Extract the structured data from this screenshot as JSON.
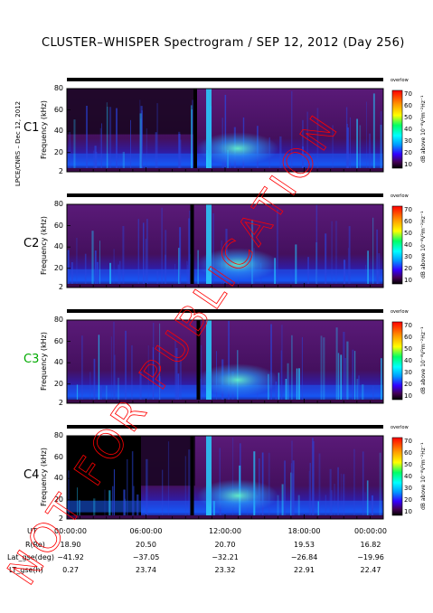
{
  "title": "CLUSTER–WHISPER Spectrogram / SEP 12, 2012 (Day 256)",
  "side_credit": "LPCE/CNRS – Dec 12, 2012",
  "watermark": "NOT FOR PUBLICATION",
  "colorbar": {
    "ticks": [
      "70",
      "60",
      "50",
      "40",
      "30",
      "20",
      "10"
    ],
    "label": "dB above 10⁻⁸V²m⁻²Hz⁻¹",
    "top_text": "overlow",
    "colors": [
      "#ff0000",
      "#ff6600",
      "#ffcc00",
      "#ffff00",
      "#66ff00",
      "#00ff66",
      "#00ffff",
      "#0099ff",
      "#0033ff",
      "#3300ff",
      "#660099",
      "#440055",
      "#000000"
    ]
  },
  "panels": [
    {
      "name": "C1",
      "color": "#000000"
    },
    {
      "name": "C2",
      "color": "#000000"
    },
    {
      "name": "C3",
      "color": "#00aa00"
    },
    {
      "name": "C4",
      "color": "#000000"
    }
  ],
  "y_axis_label": "Frequency (kHz)",
  "y_ticks": [
    "80",
    "60",
    "40",
    "20",
    "2"
  ],
  "footer": {
    "rows": [
      {
        "label": "UT",
        "values": [
          "00:00:00",
          "06:00:00",
          "12:00:00",
          "18:00:00",
          "00:00:00"
        ]
      },
      {
        "label": "R(Re)",
        "values": [
          "18.90",
          "20.50",
          "20.70",
          "19.53",
          "16.82"
        ]
      },
      {
        "label": "Lat_gse(deg)",
        "values": [
          "−41.92",
          "−37.05",
          "−32.21",
          "−26.84",
          "−19.96"
        ]
      },
      {
        "label": "LT_gse(h)",
        "values": [
          "0.27",
          "23.74",
          "23.32",
          "22.91",
          "22.47"
        ]
      }
    ]
  },
  "chart_data": {
    "type": "heatmap",
    "title": "CLUSTER–WHISPER Spectrogram / SEP 12, 2012 (Day 256)",
    "xlabel": "UT",
    "ylabel": "Frequency (kHz)",
    "x_ticks": [
      "00:00:00",
      "06:00:00",
      "12:00:00",
      "18:00:00",
      "00:00:00"
    ],
    "y_ticks": [
      80,
      60,
      40,
      20,
      2
    ],
    "ylim": [
      2,
      80
    ],
    "colorbar_range": [
      10,
      70
    ],
    "series": [
      {
        "name": "C1"
      },
      {
        "name": "C2"
      },
      {
        "name": "C3"
      },
      {
        "name": "C4"
      }
    ]
  }
}
